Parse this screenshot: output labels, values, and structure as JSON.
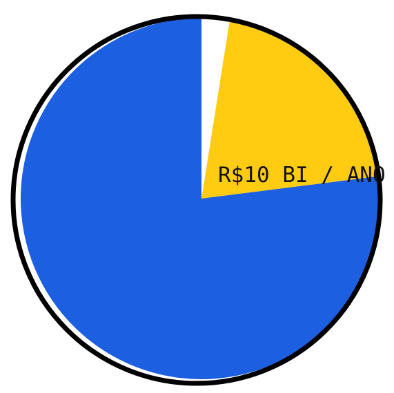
{
  "chart_data": {
    "type": "pie",
    "start_angle_deg": 0,
    "direction": "clockwise",
    "slices": [
      {
        "value": 2.5,
        "color": "#ffffff",
        "label": ""
      },
      {
        "value": 20.5,
        "color": "#ffcc12",
        "label": "R$10 BI / ANO"
      },
      {
        "value": 77,
        "color": "#1c5fe0",
        "label": ""
      }
    ],
    "outline_color": "#000000"
  }
}
